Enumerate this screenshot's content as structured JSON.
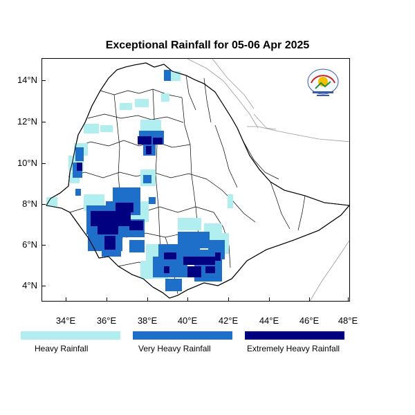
{
  "title": "Exceptional Rainfall for 05-06 Apr 2025",
  "axes": {
    "lat_labels": [
      "14°N",
      "12°N",
      "10°N",
      "8°N",
      "6°N",
      "4°N"
    ],
    "lon_labels": [
      "34°E",
      "36°E",
      "38°E",
      "40°E",
      "42°E",
      "44°E",
      "46°E",
      "48°E"
    ]
  },
  "legend": [
    {
      "label": "Heavy Rainfall",
      "color": "#b0eef0"
    },
    {
      "label": "Very Heavy Rainfall",
      "color": "#1e6fc9"
    },
    {
      "label": "Extremely Heavy Rainfall",
      "color": "#000080"
    }
  ],
  "logo": {
    "icon": "agency-logo-icon"
  }
}
